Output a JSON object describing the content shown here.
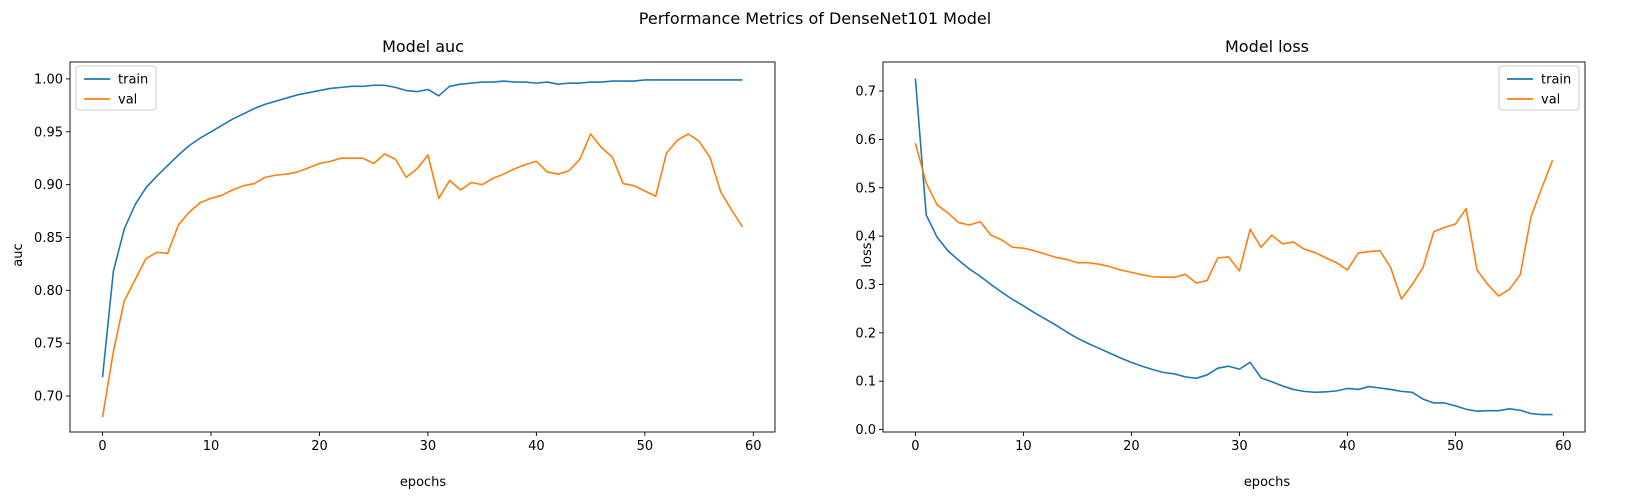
{
  "suptitle": "Performance Metrics of DenseNet101 Model",
  "colors": {
    "train": "#1f77b4",
    "val": "#ff7f0e",
    "axes": "#000000",
    "legend_border": "#cccccc"
  },
  "chart_data": [
    {
      "type": "line",
      "title": "Model auc",
      "xlabel": "epochs",
      "ylabel": "auc",
      "xlim": [
        -3,
        62
      ],
      "ylim": [
        0.666,
        1.016
      ],
      "xticks": [
        0,
        10,
        20,
        30,
        40,
        50,
        60
      ],
      "xtick_labels": [
        "0",
        "10",
        "20",
        "30",
        "40",
        "50",
        "60"
      ],
      "yticks": [
        0.7,
        0.75,
        0.8,
        0.85,
        0.9,
        0.95,
        1.0
      ],
      "ytick_labels": [
        "0.70",
        "0.75",
        "0.80",
        "0.85",
        "0.90",
        "0.95",
        "1.00"
      ],
      "grid": false,
      "legend_position": "top-left",
      "series": [
        {
          "name": "train",
          "color": "#1f77b4",
          "values": [
            0.718,
            0.818,
            0.858,
            0.881,
            0.897,
            0.908,
            0.918,
            0.928,
            0.937,
            0.944,
            0.95,
            0.956,
            0.962,
            0.967,
            0.972,
            0.976,
            0.979,
            0.982,
            0.985,
            0.987,
            0.989,
            0.991,
            0.992,
            0.993,
            0.993,
            0.994,
            0.994,
            0.992,
            0.989,
            0.988,
            0.99,
            0.984,
            0.993,
            0.995,
            0.996,
            0.997,
            0.997,
            0.998,
            0.997,
            0.997,
            0.996,
            0.997,
            0.995,
            0.996,
            0.996,
            0.997,
            0.997,
            0.998,
            0.998,
            0.998,
            0.999,
            0.999,
            0.999,
            0.999,
            0.999,
            0.999,
            0.999,
            0.999,
            0.999,
            0.999
          ]
        },
        {
          "name": "val",
          "color": "#ff7f0e",
          "values": [
            0.68,
            0.742,
            0.79,
            0.81,
            0.83,
            0.836,
            0.835,
            0.862,
            0.874,
            0.883,
            0.887,
            0.89,
            0.895,
            0.899,
            0.901,
            0.907,
            0.909,
            0.91,
            0.912,
            0.916,
            0.92,
            0.922,
            0.925,
            0.925,
            0.925,
            0.92,
            0.929,
            0.924,
            0.907,
            0.915,
            0.928,
            0.887,
            0.904,
            0.895,
            0.902,
            0.9,
            0.906,
            0.91,
            0.915,
            0.919,
            0.922,
            0.912,
            0.91,
            0.913,
            0.924,
            0.948,
            0.935,
            0.926,
            0.901,
            0.899,
            0.894,
            0.889,
            0.93,
            0.942,
            0.948,
            0.941,
            0.926,
            0.893,
            0.876,
            0.86
          ]
        }
      ]
    },
    {
      "type": "line",
      "title": "Model loss",
      "xlabel": "epochs",
      "ylabel": "loss",
      "xlim": [
        -3,
        62
      ],
      "ylim": [
        -0.005,
        0.76
      ],
      "xticks": [
        0,
        10,
        20,
        30,
        40,
        50,
        60
      ],
      "xtick_labels": [
        "0",
        "10",
        "20",
        "30",
        "40",
        "50",
        "60"
      ],
      "yticks": [
        0.0,
        0.1,
        0.2,
        0.3,
        0.4,
        0.5,
        0.6,
        0.7
      ],
      "ytick_labels": [
        "0.0",
        "0.1",
        "0.2",
        "0.3",
        "0.4",
        "0.5",
        "0.6",
        "0.7"
      ],
      "grid": false,
      "legend_position": "top-right",
      "series": [
        {
          "name": "train",
          "color": "#1f77b4",
          "values": [
            0.726,
            0.444,
            0.398,
            0.37,
            0.35,
            0.332,
            0.317,
            0.3,
            0.284,
            0.269,
            0.256,
            0.242,
            0.229,
            0.216,
            0.202,
            0.189,
            0.178,
            0.168,
            0.158,
            0.148,
            0.139,
            0.131,
            0.124,
            0.118,
            0.115,
            0.109,
            0.106,
            0.113,
            0.127,
            0.131,
            0.125,
            0.139,
            0.107,
            0.099,
            0.09,
            0.083,
            0.079,
            0.077,
            0.078,
            0.08,
            0.085,
            0.083,
            0.089,
            0.086,
            0.083,
            0.079,
            0.077,
            0.063,
            0.055,
            0.055,
            0.049,
            0.042,
            0.038,
            0.039,
            0.039,
            0.043,
            0.04,
            0.033,
            0.031,
            0.031
          ]
        },
        {
          "name": "val",
          "color": "#ff7f0e",
          "values": [
            0.592,
            0.51,
            0.465,
            0.448,
            0.428,
            0.423,
            0.43,
            0.402,
            0.392,
            0.377,
            0.375,
            0.37,
            0.363,
            0.356,
            0.352,
            0.345,
            0.345,
            0.342,
            0.337,
            0.33,
            0.325,
            0.32,
            0.316,
            0.315,
            0.315,
            0.321,
            0.303,
            0.308,
            0.355,
            0.357,
            0.328,
            0.414,
            0.377,
            0.402,
            0.384,
            0.388,
            0.373,
            0.366,
            0.355,
            0.345,
            0.33,
            0.365,
            0.368,
            0.37,
            0.335,
            0.27,
            0.3,
            0.335,
            0.409,
            0.418,
            0.425,
            0.457,
            0.33,
            0.3,
            0.276,
            0.29,
            0.32,
            0.44,
            0.5,
            0.557
          ]
        }
      ]
    }
  ]
}
